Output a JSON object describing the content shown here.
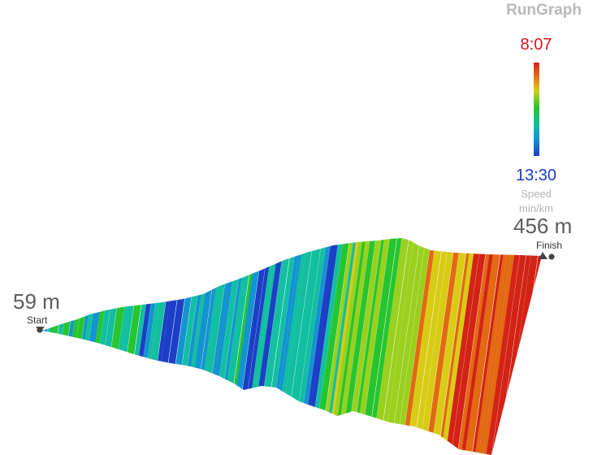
{
  "app": {
    "name": "RunGraph"
  },
  "legend": {
    "max_value": "8:07",
    "min_value": "13:30",
    "metric": "Speed",
    "unit": "min/km",
    "max_color": "#d0151b",
    "min_color": "#1d39c4"
  },
  "course": {
    "start": {
      "label": "Start",
      "elevation": "59 m",
      "marker_icon": "start-flag-icon"
    },
    "finish": {
      "label": "Finish",
      "elevation": "456 m",
      "marker_icon": "finish-flag-icon"
    },
    "palette": [
      "#d32315",
      "#e26a12",
      "#d8cc14",
      "#9ad01e",
      "#26c52f",
      "#12bfa0",
      "#1394d0",
      "#1c3fc6"
    ]
  }
}
